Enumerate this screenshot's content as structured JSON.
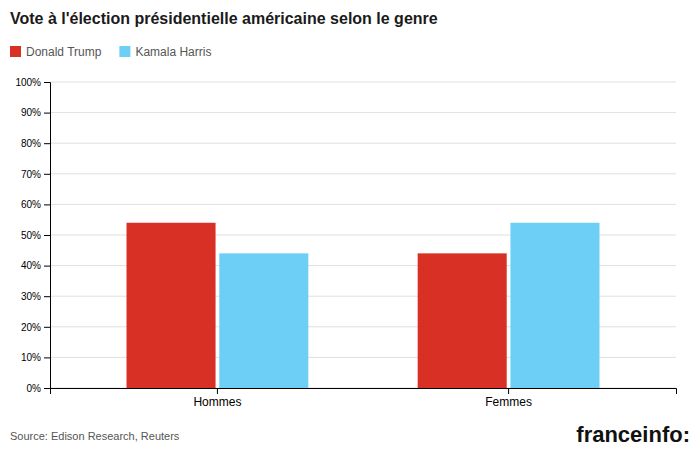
{
  "chart_data": {
    "type": "bar",
    "title": "Vote à l'élection présidentielle américaine selon le genre",
    "categories": [
      "Hommes",
      "Femmes"
    ],
    "series": [
      {
        "name": "Donald Trump",
        "color": "#d93025",
        "values": [
          54,
          44
        ]
      },
      {
        "name": "Kamala Harris",
        "color": "#6dcff6",
        "values": [
          44,
          54
        ]
      }
    ],
    "ylim": [
      0,
      100
    ],
    "yticks": [
      {
        "value": 0,
        "label": "0%"
      },
      {
        "value": 10,
        "label": "10%"
      },
      {
        "value": 20,
        "label": "20%"
      },
      {
        "value": 30,
        "label": "30%"
      },
      {
        "value": 40,
        "label": "40%"
      },
      {
        "value": 50,
        "label": "50%"
      },
      {
        "value": 60,
        "label": "60%"
      },
      {
        "value": 70,
        "label": "70%"
      },
      {
        "value": 80,
        "label": "80%"
      },
      {
        "value": 90,
        "label": "90%"
      },
      {
        "value": 100,
        "label": "100%"
      }
    ],
    "grid": true,
    "legend": "top-left",
    "annotations": [
      "Source: Edison Research, Reuters",
      "franceinfo:"
    ]
  }
}
